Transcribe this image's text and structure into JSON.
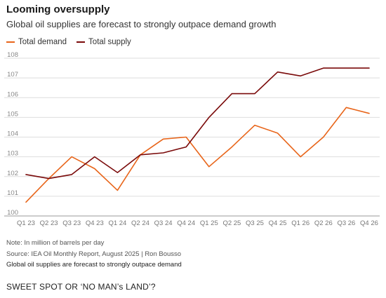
{
  "title": "Looming oversupply",
  "subtitle": "Global oil supplies are forecast to strongly outpace demand growth",
  "note": "Note: In million of barrels per day",
  "source": "Source: IEA Oil Monthly Report, August 2025 | Ron Bousso",
  "caption": "Global oil supplies are forecast to strongly outpace demand",
  "footer": "SWEET SPOT OR ‘NO MAN’s LAND’?",
  "chart_data": {
    "type": "line",
    "title": "Looming oversupply",
    "subtitle": "Global oil supplies are forecast to strongly outpace demand growth",
    "categories": [
      "Q1 23",
      "Q2 23",
      "Q3 23",
      "Q4 23",
      "Q1 24",
      "Q2 24",
      "Q3 24",
      "Q4 24",
      "Q1 25",
      "Q2 25",
      "Q3 25",
      "Q4 25",
      "Q1 26",
      "Q2 26",
      "Q3 26",
      "Q4 26"
    ],
    "yticks": [
      100,
      101,
      102,
      103,
      104,
      105,
      106,
      107,
      108
    ],
    "ylim": [
      100,
      108
    ],
    "grid": true,
    "legend_position": "top-left",
    "series": [
      {
        "name": "Total demand",
        "color": "#e8651a",
        "values": [
          100.7,
          101.9,
          103.0,
          102.4,
          101.3,
          103.1,
          103.9,
          104.0,
          102.5,
          103.5,
          104.6,
          104.2,
          103.0,
          104.0,
          105.5,
          105.2
        ]
      },
      {
        "name": "Total supply",
        "color": "#7a0a0a",
        "values": [
          102.1,
          101.9,
          102.1,
          103.0,
          102.2,
          103.1,
          103.2,
          103.5,
          105.0,
          106.2,
          106.2,
          107.3,
          107.1,
          107.5,
          107.5,
          107.5
        ]
      }
    ]
  }
}
